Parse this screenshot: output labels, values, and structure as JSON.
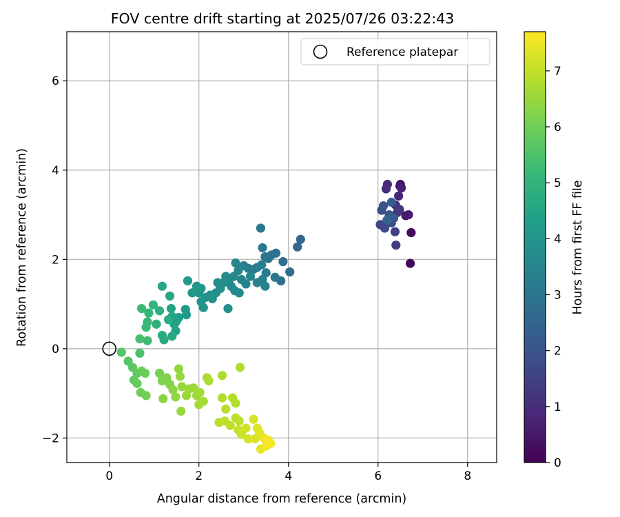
{
  "chart_data": {
    "type": "scatter",
    "title": "FOV centre drift starting at 2025/07/26 03:22:43",
    "xlabel": "Angular distance from reference (arcmin)",
    "ylabel": "Rotation from reference (arcmin)",
    "xlim": [
      -0.95,
      8.65
    ],
    "ylim": [
      -2.55,
      7.1
    ],
    "xticks": [
      0,
      2,
      4,
      6,
      8
    ],
    "xtick_labels": [
      "0",
      "2",
      "4",
      "6",
      "8"
    ],
    "yticks": [
      -2,
      0,
      2,
      4,
      6
    ],
    "ytick_labels": [
      "−2",
      "0",
      "2",
      "4",
      "6"
    ],
    "grid": true,
    "legend": {
      "placement": "top-right",
      "entries": [
        "Reference platepar"
      ]
    },
    "reference_point": {
      "label": "Reference platepar",
      "x": 0,
      "y": 0,
      "marker": "open-circle"
    },
    "colorbar": {
      "label": "Hours from first FF file",
      "colormap": "viridis",
      "range": [
        0,
        7.7
      ],
      "ticks": [
        0,
        1,
        2,
        3,
        4,
        5,
        6,
        7
      ],
      "tick_labels": [
        "0",
        "1",
        "2",
        "3",
        "4",
        "5",
        "6",
        "7"
      ]
    },
    "colormap_stops": [
      "#440154",
      "#482878",
      "#3e4989",
      "#31688e",
      "#26828e",
      "#1f9e89",
      "#35b779",
      "#6ece58",
      "#b5de2b",
      "#fde725"
    ],
    "series": [
      {
        "color_by": "hours",
        "points": [
          {
            "x": 6.72,
            "y": 1.91,
            "c": 0.1
          },
          {
            "x": 6.74,
            "y": 2.6,
            "c": 0.2
          },
          {
            "x": 6.5,
            "y": 3.68,
            "c": 0.3
          },
          {
            "x": 6.49,
            "y": 3.64,
            "c": 0.4
          },
          {
            "x": 6.62,
            "y": 2.98,
            "c": 0.5
          },
          {
            "x": 6.68,
            "y": 3.0,
            "c": 0.6
          },
          {
            "x": 6.52,
            "y": 3.6,
            "c": 0.7
          },
          {
            "x": 6.46,
            "y": 3.42,
            "c": 0.8
          },
          {
            "x": 6.21,
            "y": 3.68,
            "c": 0.9
          },
          {
            "x": 6.18,
            "y": 3.58,
            "c": 1.0
          },
          {
            "x": 6.39,
            "y": 3.22,
            "c": 1.1
          },
          {
            "x": 6.43,
            "y": 3.05,
            "c": 1.2
          },
          {
            "x": 6.48,
            "y": 3.12,
            "c": 1.3
          },
          {
            "x": 6.4,
            "y": 2.32,
            "c": 1.4
          },
          {
            "x": 6.38,
            "y": 2.62,
            "c": 1.5
          },
          {
            "x": 6.05,
            "y": 2.78,
            "c": 1.6
          },
          {
            "x": 6.15,
            "y": 2.7,
            "c": 1.7
          },
          {
            "x": 6.3,
            "y": 2.82,
            "c": 1.8
          },
          {
            "x": 6.08,
            "y": 3.1,
            "c": 1.9
          },
          {
            "x": 6.12,
            "y": 3.2,
            "c": 2.0
          },
          {
            "x": 6.25,
            "y": 3.0,
            "c": 2.1
          },
          {
            "x": 6.35,
            "y": 2.92,
            "c": 2.2
          },
          {
            "x": 6.3,
            "y": 3.28,
            "c": 2.3
          },
          {
            "x": 6.2,
            "y": 2.88,
            "c": 2.4
          },
          {
            "x": 4.27,
            "y": 2.45,
            "c": 2.5
          },
          {
            "x": 4.2,
            "y": 2.28,
            "c": 2.6
          },
          {
            "x": 4.03,
            "y": 1.72,
            "c": 2.7
          },
          {
            "x": 3.83,
            "y": 1.52,
            "c": 2.75
          },
          {
            "x": 3.88,
            "y": 1.95,
            "c": 2.8
          },
          {
            "x": 3.72,
            "y": 2.14,
            "c": 2.85
          },
          {
            "x": 3.62,
            "y": 2.1,
            "c": 2.9
          },
          {
            "x": 3.55,
            "y": 2.02,
            "c": 2.95
          },
          {
            "x": 3.48,
            "y": 2.06,
            "c": 3.0
          },
          {
            "x": 3.42,
            "y": 2.26,
            "c": 3.05
          },
          {
            "x": 3.38,
            "y": 2.7,
            "c": 3.1
          },
          {
            "x": 3.7,
            "y": 1.6,
            "c": 3.12
          },
          {
            "x": 3.5,
            "y": 1.7,
            "c": 3.15
          },
          {
            "x": 3.4,
            "y": 1.88,
            "c": 3.2
          },
          {
            "x": 3.3,
            "y": 1.82,
            "c": 3.25
          },
          {
            "x": 3.22,
            "y": 1.78,
            "c": 3.28
          },
          {
            "x": 3.1,
            "y": 1.8,
            "c": 3.3
          },
          {
            "x": 3.0,
            "y": 1.86,
            "c": 3.35
          },
          {
            "x": 3.48,
            "y": 1.4,
            "c": 3.38
          },
          {
            "x": 3.42,
            "y": 1.55,
            "c": 3.4
          },
          {
            "x": 3.3,
            "y": 1.48,
            "c": 3.45
          },
          {
            "x": 3.15,
            "y": 1.62,
            "c": 3.48
          },
          {
            "x": 3.05,
            "y": 1.45,
            "c": 3.5
          },
          {
            "x": 2.95,
            "y": 1.55,
            "c": 3.52
          },
          {
            "x": 2.88,
            "y": 1.75,
            "c": 3.55
          },
          {
            "x": 2.82,
            "y": 1.92,
            "c": 3.58
          },
          {
            "x": 2.78,
            "y": 1.62,
            "c": 3.6
          },
          {
            "x": 2.72,
            "y": 1.4,
            "c": 3.62
          },
          {
            "x": 2.9,
            "y": 1.25,
            "c": 3.65
          },
          {
            "x": 2.8,
            "y": 1.3,
            "c": 3.67
          },
          {
            "x": 2.68,
            "y": 1.55,
            "c": 3.7
          },
          {
            "x": 2.6,
            "y": 1.62,
            "c": 3.72
          },
          {
            "x": 2.55,
            "y": 1.48,
            "c": 3.75
          },
          {
            "x": 2.48,
            "y": 1.35,
            "c": 3.78
          },
          {
            "x": 2.42,
            "y": 1.48,
            "c": 3.8
          },
          {
            "x": 2.38,
            "y": 1.25,
            "c": 3.82
          },
          {
            "x": 2.65,
            "y": 0.9,
            "c": 3.85
          },
          {
            "x": 2.3,
            "y": 1.12,
            "c": 3.88
          },
          {
            "x": 2.25,
            "y": 1.2,
            "c": 3.9
          },
          {
            "x": 2.15,
            "y": 1.15,
            "c": 3.92
          },
          {
            "x": 2.1,
            "y": 0.92,
            "c": 3.95
          },
          {
            "x": 2.05,
            "y": 1.05,
            "c": 3.97
          },
          {
            "x": 2.0,
            "y": 1.25,
            "c": 4.0
          },
          {
            "x": 1.95,
            "y": 1.4,
            "c": 4.02
          },
          {
            "x": 2.05,
            "y": 1.35,
            "c": 4.05
          },
          {
            "x": 1.85,
            "y": 1.25,
            "c": 4.08
          },
          {
            "x": 1.75,
            "y": 1.52,
            "c": 4.1
          },
          {
            "x": 1.7,
            "y": 0.88,
            "c": 4.15
          },
          {
            "x": 1.72,
            "y": 0.76,
            "c": 4.2
          },
          {
            "x": 1.55,
            "y": 0.7,
            "c": 4.25
          },
          {
            "x": 1.5,
            "y": 0.62,
            "c": 4.3
          },
          {
            "x": 1.45,
            "y": 0.55,
            "c": 4.35
          },
          {
            "x": 1.4,
            "y": 0.72,
            "c": 4.4
          },
          {
            "x": 1.48,
            "y": 0.4,
            "c": 4.45
          },
          {
            "x": 1.38,
            "y": 0.9,
            "c": 4.5
          },
          {
            "x": 1.35,
            "y": 1.18,
            "c": 4.55
          },
          {
            "x": 1.18,
            "y": 1.4,
            "c": 4.6
          },
          {
            "x": 1.4,
            "y": 0.28,
            "c": 4.65
          },
          {
            "x": 1.22,
            "y": 0.2,
            "c": 4.7
          },
          {
            "x": 1.18,
            "y": 0.3,
            "c": 4.75
          },
          {
            "x": 1.32,
            "y": 0.65,
            "c": 4.8
          },
          {
            "x": 1.12,
            "y": 0.85,
            "c": 4.85
          },
          {
            "x": 1.05,
            "y": 0.55,
            "c": 4.9
          },
          {
            "x": 0.98,
            "y": 0.98,
            "c": 5.0
          },
          {
            "x": 0.88,
            "y": 0.8,
            "c": 5.1
          },
          {
            "x": 0.85,
            "y": 0.6,
            "c": 5.15
          },
          {
            "x": 0.82,
            "y": 0.48,
            "c": 5.2
          },
          {
            "x": 0.72,
            "y": 0.9,
            "c": 5.25
          },
          {
            "x": 0.85,
            "y": 0.18,
            "c": 5.3
          },
          {
            "x": 0.68,
            "y": 0.22,
            "c": 5.4
          },
          {
            "x": 0.68,
            "y": -0.1,
            "c": 5.5
          },
          {
            "x": 0.27,
            "y": -0.08,
            "c": 5.6
          },
          {
            "x": 0.42,
            "y": -0.28,
            "c": 5.65
          },
          {
            "x": 0.52,
            "y": -0.42,
            "c": 5.7
          },
          {
            "x": 0.62,
            "y": -0.55,
            "c": 5.75
          },
          {
            "x": 0.55,
            "y": -0.7,
            "c": 5.8
          },
          {
            "x": 0.62,
            "y": -0.78,
            "c": 5.85
          },
          {
            "x": 0.72,
            "y": -0.5,
            "c": 5.9
          },
          {
            "x": 0.8,
            "y": -0.55,
            "c": 5.95
          },
          {
            "x": 0.7,
            "y": -0.98,
            "c": 6.0
          },
          {
            "x": 0.82,
            "y": -1.05,
            "c": 6.05
          },
          {
            "x": 1.12,
            "y": -0.55,
            "c": 6.1
          },
          {
            "x": 1.18,
            "y": -0.72,
            "c": 6.15
          },
          {
            "x": 1.28,
            "y": -0.65,
            "c": 6.2
          },
          {
            "x": 1.35,
            "y": -0.8,
            "c": 6.25
          },
          {
            "x": 1.2,
            "y": -1.12,
            "c": 6.3
          },
          {
            "x": 1.42,
            "y": -0.92,
            "c": 6.35
          },
          {
            "x": 1.48,
            "y": -1.08,
            "c": 6.4
          },
          {
            "x": 1.55,
            "y": -0.45,
            "c": 6.42
          },
          {
            "x": 1.58,
            "y": -0.62,
            "c": 6.45
          },
          {
            "x": 1.62,
            "y": -0.85,
            "c": 6.48
          },
          {
            "x": 1.6,
            "y": -1.4,
            "c": 6.5
          },
          {
            "x": 1.72,
            "y": -1.05,
            "c": 6.52
          },
          {
            "x": 1.78,
            "y": -0.9,
            "c": 6.55
          },
          {
            "x": 1.88,
            "y": -0.88,
            "c": 6.58
          },
          {
            "x": 1.95,
            "y": -1.05,
            "c": 6.6
          },
          {
            "x": 2.02,
            "y": -0.98,
            "c": 6.62
          },
          {
            "x": 2.0,
            "y": -1.25,
            "c": 6.65
          },
          {
            "x": 2.1,
            "y": -1.18,
            "c": 6.68
          },
          {
            "x": 2.18,
            "y": -0.65,
            "c": 6.7
          },
          {
            "x": 2.22,
            "y": -0.72,
            "c": 6.72
          },
          {
            "x": 2.52,
            "y": -0.6,
            "c": 6.75
          },
          {
            "x": 2.92,
            "y": -0.42,
            "c": 6.78
          },
          {
            "x": 2.52,
            "y": -1.1,
            "c": 6.8
          },
          {
            "x": 2.75,
            "y": -1.1,
            "c": 6.82
          },
          {
            "x": 2.82,
            "y": -1.22,
            "c": 6.85
          },
          {
            "x": 2.6,
            "y": -1.35,
            "c": 6.88
          },
          {
            "x": 2.45,
            "y": -1.65,
            "c": 6.9
          },
          {
            "x": 2.58,
            "y": -1.62,
            "c": 6.93
          },
          {
            "x": 2.7,
            "y": -1.72,
            "c": 6.95
          },
          {
            "x": 2.82,
            "y": -1.55,
            "c": 6.98
          },
          {
            "x": 2.9,
            "y": -1.62,
            "c": 7.0
          },
          {
            "x": 2.88,
            "y": -1.82,
            "c": 7.05
          },
          {
            "x": 2.95,
            "y": -1.92,
            "c": 7.1
          },
          {
            "x": 3.05,
            "y": -1.78,
            "c": 7.15
          },
          {
            "x": 3.1,
            "y": -2.02,
            "c": 7.2
          },
          {
            "x": 3.22,
            "y": -1.58,
            "c": 7.25
          },
          {
            "x": 3.25,
            "y": -2.02,
            "c": 7.3
          },
          {
            "x": 3.3,
            "y": -1.78,
            "c": 7.35
          },
          {
            "x": 3.35,
            "y": -1.88,
            "c": 7.4
          },
          {
            "x": 3.38,
            "y": -2.25,
            "c": 7.45
          },
          {
            "x": 3.45,
            "y": -2.0,
            "c": 7.5
          },
          {
            "x": 3.5,
            "y": -2.18,
            "c": 7.55
          },
          {
            "x": 3.6,
            "y": -2.12,
            "c": 7.6
          },
          {
            "x": 3.55,
            "y": -2.05,
            "c": 7.65
          }
        ]
      }
    ]
  }
}
